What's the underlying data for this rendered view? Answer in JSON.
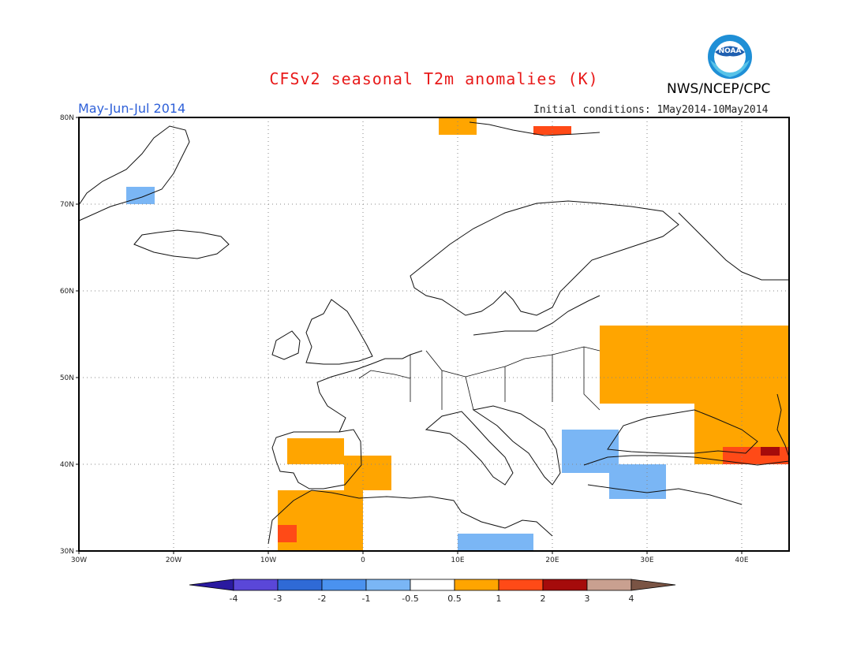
{
  "header": {
    "title": "CFSv2 seasonal T2m anomalies (K)",
    "season": "May-Jun-Jul 2014",
    "initial_conditions": "Initial conditions: 1May2014-10May2014",
    "agency": "NWS/NCEP/CPC",
    "logo": {
      "icon": "noaa-logo-icon",
      "text": "NOAA"
    }
  },
  "map": {
    "projection": "lat-lon",
    "lon_range": [
      -30,
      45
    ],
    "lat_range": [
      30,
      80
    ],
    "grid": "dotted",
    "lon_ticks": [
      "30W",
      "20W",
      "10W",
      "0",
      "10E",
      "20E",
      "30E",
      "40E"
    ],
    "lat_ticks": [
      "80N",
      "70N",
      "60N",
      "50N",
      "40N",
      "30N"
    ],
    "anomaly_regions": [
      {
        "level": 1,
        "lon": [
          -8,
          -2
        ],
        "lat": [
          40,
          43
        ]
      },
      {
        "level": 1,
        "lon": [
          -2,
          3
        ],
        "lat": [
          37,
          41
        ]
      },
      {
        "level": 1,
        "lon": [
          -9,
          0
        ],
        "lat": [
          30,
          37
        ]
      },
      {
        "level": 2,
        "lon": [
          -9,
          -7
        ],
        "lat": [
          31,
          33
        ]
      },
      {
        "level": 1,
        "lon": [
          25,
          45
        ],
        "lat": [
          47,
          56
        ]
      },
      {
        "level": 1,
        "lon": [
          35,
          45
        ],
        "lat": [
          40,
          47
        ]
      },
      {
        "level": 2,
        "lon": [
          38,
          45
        ],
        "lat": [
          40,
          42
        ]
      },
      {
        "level": 3,
        "lon": [
          42,
          44
        ],
        "lat": [
          41,
          42
        ]
      },
      {
        "level": 1,
        "lon": [
          8,
          12
        ],
        "lat": [
          78,
          80
        ]
      },
      {
        "level": 2,
        "lon": [
          18,
          22
        ],
        "lat": [
          78,
          79
        ]
      },
      {
        "level": -1,
        "lon": [
          21,
          27
        ],
        "lat": [
          39,
          44
        ]
      },
      {
        "level": -1,
        "lon": [
          26,
          32
        ],
        "lat": [
          36,
          40
        ]
      },
      {
        "level": -1,
        "lon": [
          10,
          18
        ],
        "lat": [
          30,
          32
        ]
      },
      {
        "level": -1,
        "lon": [
          -25,
          -22
        ],
        "lat": [
          70,
          72
        ]
      }
    ]
  },
  "colorbar": {
    "labels": [
      "-4",
      "-3",
      "-2",
      "-1",
      "-0.5",
      "0.5",
      "1",
      "2",
      "3",
      "4"
    ],
    "colors": [
      "#2a1aa0",
      "#5a47d8",
      "#2f6ad6",
      "#4a92ef",
      "#7ab6f5",
      "#ffffff",
      "#ffa500",
      "#ff4a17",
      "#a50b0b",
      "#c9a090",
      "#7a5444"
    ]
  },
  "colors": {
    "title": "#e81a1a",
    "season": "#2d5fd8",
    "warm": "#ffa500",
    "hot": "#ff4a17",
    "cool": "#7ab6f5"
  }
}
